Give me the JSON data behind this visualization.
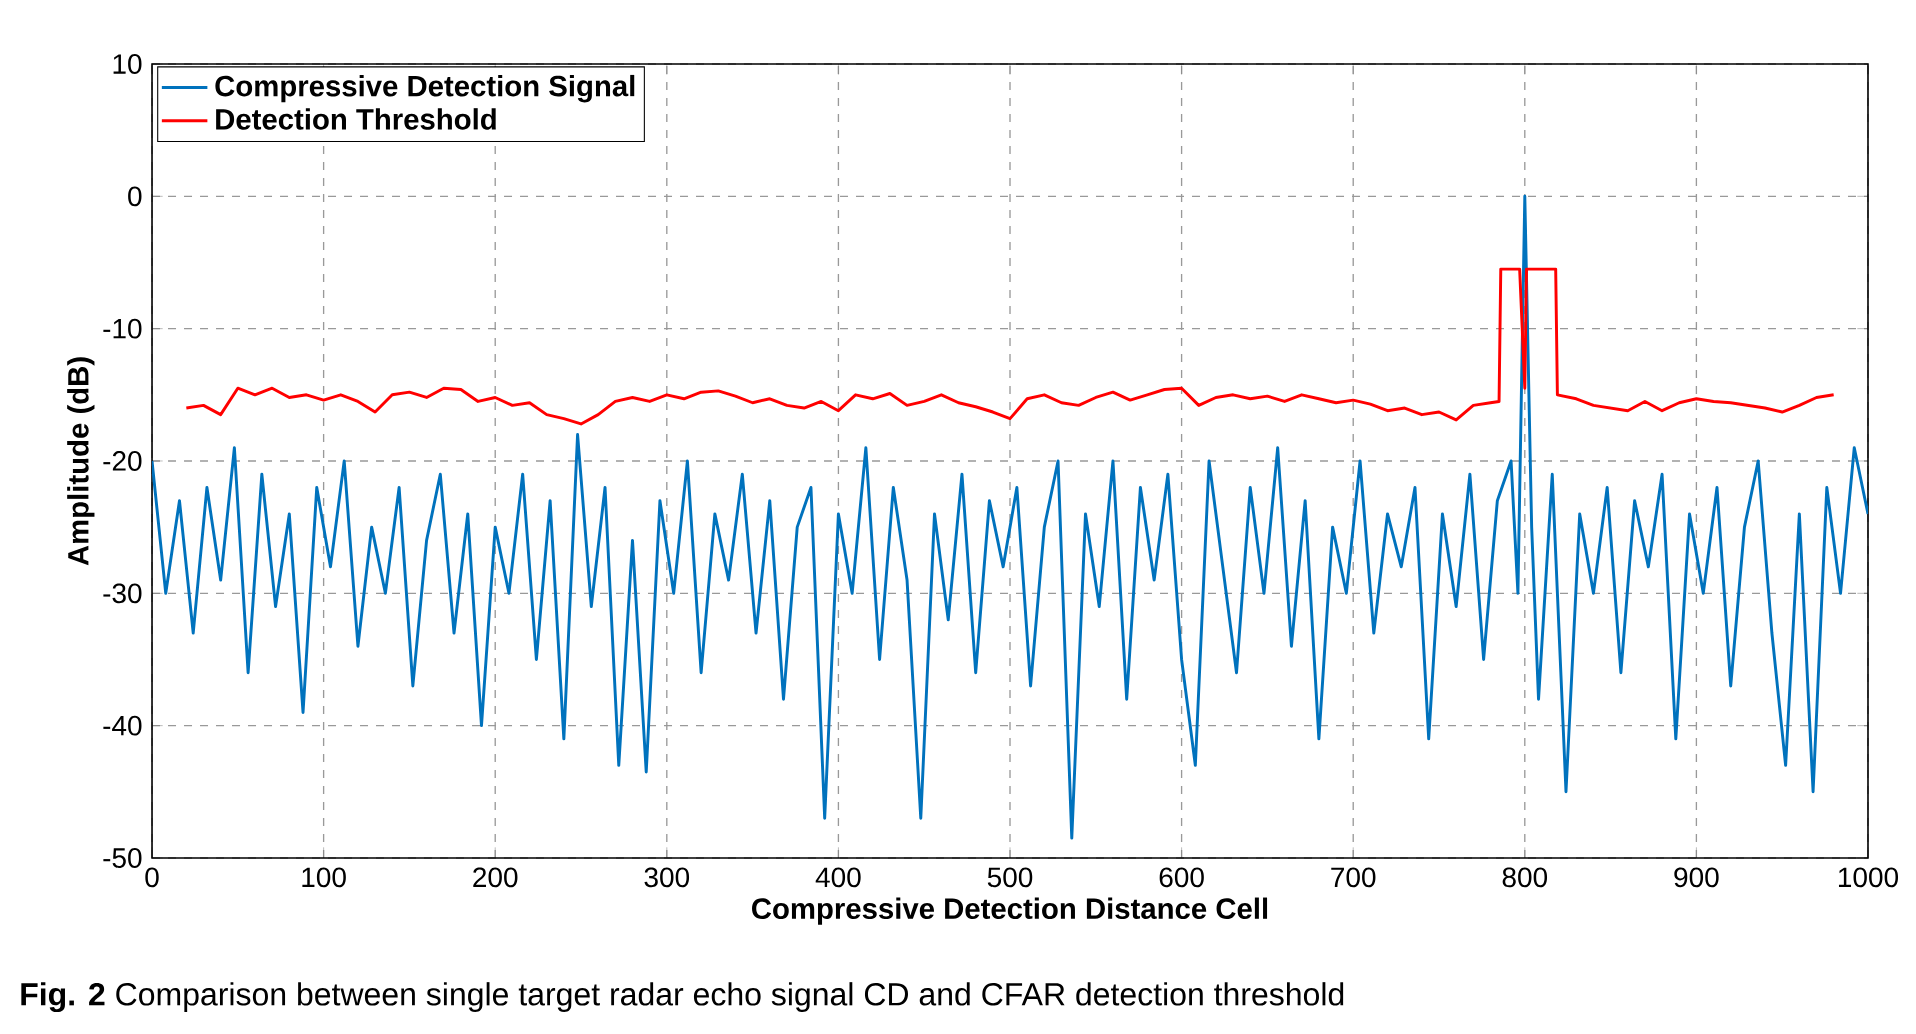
{
  "chart_data": {
    "type": "line",
    "xlabel": "Compressive Detection Distance Cell",
    "ylabel": "Amplitude (dB)",
    "annotations": [
      "**Fig. 2** Comparison between single target radar echo signal CD and CFAR detection threshold"
    ],
    "xlim": [
      0,
      1000
    ],
    "xticks": [
      0,
      100,
      200,
      300,
      400,
      500,
      600,
      700,
      800,
      900,
      1000
    ],
    "ylim": [
      -50,
      10
    ],
    "yticks": [
      -50,
      -40,
      -30,
      -20,
      -10,
      0,
      10
    ],
    "grid": true,
    "legend": "top left",
    "line_style": "solid",
    "series": [
      {
        "name": "Compressive Detection Signal",
        "color": "#0072bd",
        "x": [
          0,
          8,
          16,
          24,
          32,
          40,
          48,
          56,
          64,
          72,
          80,
          88,
          96,
          104,
          112,
          120,
          128,
          136,
          144,
          152,
          160,
          168,
          176,
          184,
          192,
          200,
          208,
          216,
          224,
          232,
          240,
          248,
          256,
          264,
          272,
          280,
          288,
          296,
          304,
          312,
          320,
          328,
          336,
          344,
          352,
          360,
          368,
          376,
          384,
          392,
          400,
          408,
          416,
          424,
          432,
          440,
          448,
          456,
          464,
          472,
          480,
          488,
          496,
          504,
          512,
          520,
          528,
          536,
          544,
          552,
          560,
          568,
          576,
          584,
          592,
          600,
          608,
          616,
          624,
          632,
          640,
          648,
          656,
          664,
          672,
          680,
          688,
          696,
          704,
          712,
          720,
          728,
          736,
          744,
          752,
          760,
          768,
          776,
          784,
          792,
          796,
          800,
          804,
          808,
          816,
          824,
          832,
          840,
          848,
          856,
          864,
          872,
          880,
          888,
          896,
          904,
          912,
          920,
          928,
          936,
          944,
          952,
          960,
          968,
          976,
          984,
          992,
          1000
        ],
        "values": [
          -20,
          -30,
          -23,
          -33,
          -22,
          -29,
          -19,
          -36,
          -21,
          -31,
          -24,
          -39,
          -22,
          -28,
          -20,
          -34,
          -25,
          -30,
          -22,
          -37,
          -26,
          -21,
          -33,
          -24,
          -40,
          -25,
          -30,
          -21,
          -35,
          -23,
          -41,
          -18,
          -31,
          -22,
          -43,
          -26,
          -43.5,
          -23,
          -30,
          -20,
          -36,
          -24,
          -29,
          -21,
          -33,
          -23,
          -38,
          -25,
          -22,
          -47,
          -24,
          -30,
          -19,
          -35,
          -22,
          -29,
          -47,
          -24,
          -32,
          -21,
          -36,
          -23,
          -28,
          -22,
          -37,
          -25,
          -20,
          -48.5,
          -24,
          -31,
          -20,
          -38,
          -22,
          -29,
          -21,
          -35,
          -43,
          -20,
          -28,
          -36,
          -22,
          -30,
          -19,
          -34,
          -23,
          -41,
          -25,
          -30,
          -20,
          -33,
          -24,
          -28,
          -22,
          -41,
          -24,
          -31,
          -21,
          -35,
          -23,
          -20,
          -30,
          0,
          -25,
          -38,
          -21,
          -45,
          -24,
          -30,
          -22,
          -36,
          -23,
          -28,
          -21,
          -41,
          -24,
          -30,
          -22,
          -37,
          -25,
          -20,
          -33,
          -43,
          -24,
          -45,
          -22,
          -30,
          -19,
          -24
        ]
      },
      {
        "name": "Detection Threshold",
        "color": "#ff0000",
        "x": [
          20,
          30,
          40,
          50,
          60,
          70,
          80,
          90,
          100,
          110,
          120,
          130,
          140,
          150,
          160,
          170,
          180,
          190,
          200,
          210,
          220,
          230,
          240,
          250,
          260,
          270,
          280,
          290,
          300,
          310,
          320,
          330,
          340,
          350,
          360,
          370,
          380,
          390,
          400,
          410,
          420,
          430,
          440,
          450,
          460,
          470,
          480,
          490,
          500,
          510,
          520,
          530,
          540,
          550,
          560,
          570,
          580,
          590,
          600,
          610,
          620,
          630,
          640,
          650,
          660,
          670,
          680,
          690,
          700,
          710,
          720,
          730,
          740,
          750,
          760,
          770,
          780,
          785,
          786,
          797,
          800,
          801,
          818,
          819,
          830,
          840,
          850,
          860,
          870,
          880,
          890,
          900,
          910,
          920,
          930,
          940,
          950,
          960,
          970,
          980
        ],
        "values": [
          -16,
          -15.8,
          -16.5,
          -14.5,
          -15,
          -14.5,
          -15.2,
          -15,
          -15.4,
          -15,
          -15.5,
          -16.3,
          -15,
          -14.8,
          -15.2,
          -14.5,
          -14.6,
          -15.5,
          -15.2,
          -15.8,
          -15.6,
          -16.5,
          -16.8,
          -17.2,
          -16.5,
          -15.5,
          -15.2,
          -15.5,
          -15,
          -15.3,
          -14.8,
          -14.7,
          -15.1,
          -15.6,
          -15.3,
          -15.8,
          -16,
          -15.5,
          -16.2,
          -15,
          -15.3,
          -14.9,
          -15.8,
          -15.5,
          -15,
          -15.6,
          -15.9,
          -16.3,
          -16.8,
          -15.3,
          -15,
          -15.6,
          -15.8,
          -15.2,
          -14.8,
          -15.4,
          -15,
          -14.6,
          -14.5,
          -15.8,
          -15.2,
          -15,
          -15.3,
          -15.1,
          -15.5,
          -15,
          -15.3,
          -15.6,
          -15.4,
          -15.7,
          -16.2,
          -16,
          -16.5,
          -16.3,
          -16.9,
          -15.8,
          -15.6,
          -15.5,
          -5.5,
          -5.5,
          -14.5,
          -5.5,
          -5.5,
          -15,
          -15.3,
          -15.8,
          -16,
          -16.2,
          -15.5,
          -16.2,
          -15.6,
          -15.3,
          -15.5,
          -15.6,
          -15.8,
          -16,
          -16.3,
          -15.8,
          -15.2,
          -15
        ]
      }
    ]
  }
}
